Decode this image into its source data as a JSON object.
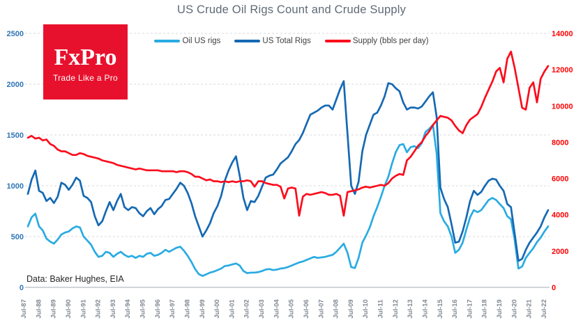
{
  "title": "US Crude Oil Rigs Count and Crude Supply",
  "source_note": "Data: Baker Hughes, EIA",
  "logo": {
    "brand": "FxPro",
    "tagline": "Trade Like a Pro",
    "bg_color": "#e8112d"
  },
  "colors": {
    "background": "#ffffff",
    "title_text": "#5f6a76",
    "legend_text": "#3f3f3f",
    "source_text": "#262626",
    "gridline": "#d9d9d9",
    "axis_line": "#b7bcc1",
    "left_axis_labels": "#2e75b6",
    "right_axis_labels": "#ff0000",
    "x_axis_labels": "#7f8790"
  },
  "chart_data": {
    "type": "line",
    "title": "US Crude Oil Rigs Count and Crude Supply",
    "grid": "horizontal-dashed",
    "legend_position": "top",
    "x": {
      "start": "Jul-1987",
      "end": "Jul-2022",
      "step_months": 3,
      "points": 141,
      "tick_labels": [
        "Jul-87",
        "Jul-88",
        "Jul-89",
        "Jul-90",
        "Jul-91",
        "Jul-92",
        "Jul-93",
        "Jul-94",
        "Jul-95",
        "Jul-96",
        "Jul-97",
        "Jul-98",
        "Jul-99",
        "Jul-00",
        "Jul-01",
        "Jul-02",
        "Jul-03",
        "Jul-04",
        "Jul-05",
        "Jul-06",
        "Jul-07",
        "Jul-08",
        "Jul-09",
        "Jul-10",
        "Jul-11",
        "Jul-12",
        "Jul-13",
        "Jul-14",
        "Jul-15",
        "Jul-16",
        "Jul-17",
        "Jul-18",
        "Jul-19",
        "Jul-20",
        "Jul-21",
        "Jul-22"
      ]
    },
    "left_axis": {
      "min": 0,
      "max": 2500,
      "ticks": [
        2500,
        2000,
        1500,
        1000,
        500,
        0
      ],
      "units": "rigs"
    },
    "right_axis": {
      "min": 0,
      "max": 14000,
      "ticks": [
        14000,
        12000,
        10000,
        8000,
        6000,
        4000,
        2000,
        0
      ],
      "units": "thousand bbls per day"
    },
    "series": [
      {
        "name": "Oil US rigs",
        "color": "#29abe2",
        "axis": "left",
        "values": [
          600,
          690,
          725,
          600,
          560,
          480,
          450,
          430,
          470,
          520,
          540,
          550,
          580,
          600,
          590,
          500,
          460,
          420,
          350,
          300,
          310,
          350,
          340,
          300,
          330,
          350,
          320,
          300,
          310,
          290,
          310,
          300,
          330,
          340,
          310,
          320,
          340,
          370,
          350,
          370,
          390,
          400,
          360,
          310,
          250,
          180,
          130,
          112,
          128,
          145,
          155,
          170,
          185,
          210,
          215,
          225,
          235,
          215,
          160,
          140,
          145,
          145,
          150,
          160,
          175,
          180,
          170,
          175,
          185,
          190,
          200,
          215,
          230,
          245,
          255,
          270,
          285,
          300,
          290,
          295,
          300,
          310,
          320,
          350,
          390,
          430,
          340,
          200,
          190,
          290,
          440,
          510,
          590,
          700,
          790,
          890,
          1000,
          1090,
          1220,
          1330,
          1400,
          1410,
          1330,
          1380,
          1390,
          1370,
          1420,
          1530,
          1560,
          1600,
          1320,
          730,
          650,
          600,
          500,
          340,
          370,
          440,
          570,
          690,
          760,
          740,
          760,
          810,
          860,
          880,
          860,
          820,
          780,
          700,
          670,
          470,
          185,
          205,
          290,
          340,
          385,
          445,
          490,
          550,
          600
        ]
      },
      {
        "name": "US Total Rigs",
        "color": "#1569b3",
        "axis": "left",
        "values": [
          920,
          1060,
          1150,
          950,
          930,
          850,
          880,
          830,
          890,
          1030,
          1010,
          960,
          1010,
          1080,
          1050,
          900,
          880,
          840,
          700,
          610,
          650,
          750,
          840,
          760,
          850,
          920,
          790,
          760,
          790,
          780,
          730,
          700,
          750,
          780,
          720,
          770,
          800,
          860,
          870,
          920,
          970,
          1030,
          1000,
          930,
          830,
          700,
          600,
          500,
          560,
          630,
          730,
          800,
          900,
          1050,
          1150,
          1230,
          1290,
          1100,
          880,
          760,
          850,
          840,
          900,
          990,
          1080,
          1100,
          1110,
          1160,
          1220,
          1250,
          1280,
          1340,
          1410,
          1450,
          1520,
          1610,
          1700,
          1720,
          1740,
          1770,
          1790,
          1790,
          1750,
          1850,
          1950,
          2030,
          1510,
          1000,
          920,
          1040,
          1340,
          1500,
          1600,
          1700,
          1720,
          1790,
          1880,
          2010,
          2000,
          1960,
          1930,
          1820,
          1750,
          1770,
          1770,
          1760,
          1780,
          1830,
          1880,
          1920,
          1680,
          980,
          870,
          790,
          620,
          440,
          450,
          550,
          690,
          850,
          950,
          910,
          940,
          1000,
          1050,
          1070,
          1060,
          1000,
          950,
          820,
          790,
          530,
          260,
          280,
          370,
          440,
          490,
          540,
          600,
          690,
          760
        ]
      },
      {
        "name": "Supply (bbls per day)",
        "color": "#fb0d1c",
        "axis": "right",
        "values": [
          8250,
          8350,
          8200,
          8250,
          8100,
          8150,
          7900,
          7800,
          7600,
          7500,
          7500,
          7400,
          7300,
          7300,
          7400,
          7350,
          7250,
          7200,
          7150,
          7100,
          7000,
          6950,
          6900,
          6850,
          6750,
          6700,
          6650,
          6600,
          6550,
          6500,
          6550,
          6500,
          6450,
          6450,
          6450,
          6450,
          6400,
          6400,
          6400,
          6400,
          6350,
          6400,
          6400,
          6350,
          6250,
          6100,
          6100,
          6000,
          5900,
          5950,
          5850,
          5850,
          5800,
          5850,
          5800,
          5850,
          5800,
          5850,
          5850,
          5900,
          5850,
          5550,
          5850,
          5850,
          5750,
          5700,
          5650,
          5650,
          5550,
          4900,
          5450,
          5500,
          5450,
          3950,
          5000,
          5150,
          5100,
          5150,
          5200,
          5250,
          5200,
          5100,
          5100,
          5150,
          5050,
          3950,
          5250,
          5300,
          5350,
          5400,
          5500,
          5550,
          5500,
          5550,
          5600,
          5650,
          5600,
          5750,
          6000,
          6150,
          6250,
          6200,
          7000,
          7200,
          7500,
          7800,
          8000,
          8350,
          8600,
          8950,
          9200,
          9450,
          9400,
          9350,
          9200,
          8900,
          8650,
          8500,
          8950,
          9250,
          9400,
          9550,
          9950,
          10450,
          10900,
          11350,
          11900,
          12100,
          11300,
          12600,
          13000,
          12100,
          11000,
          9900,
          9800,
          11000,
          11300,
          10200,
          11500,
          11900,
          12200
        ]
      }
    ]
  }
}
